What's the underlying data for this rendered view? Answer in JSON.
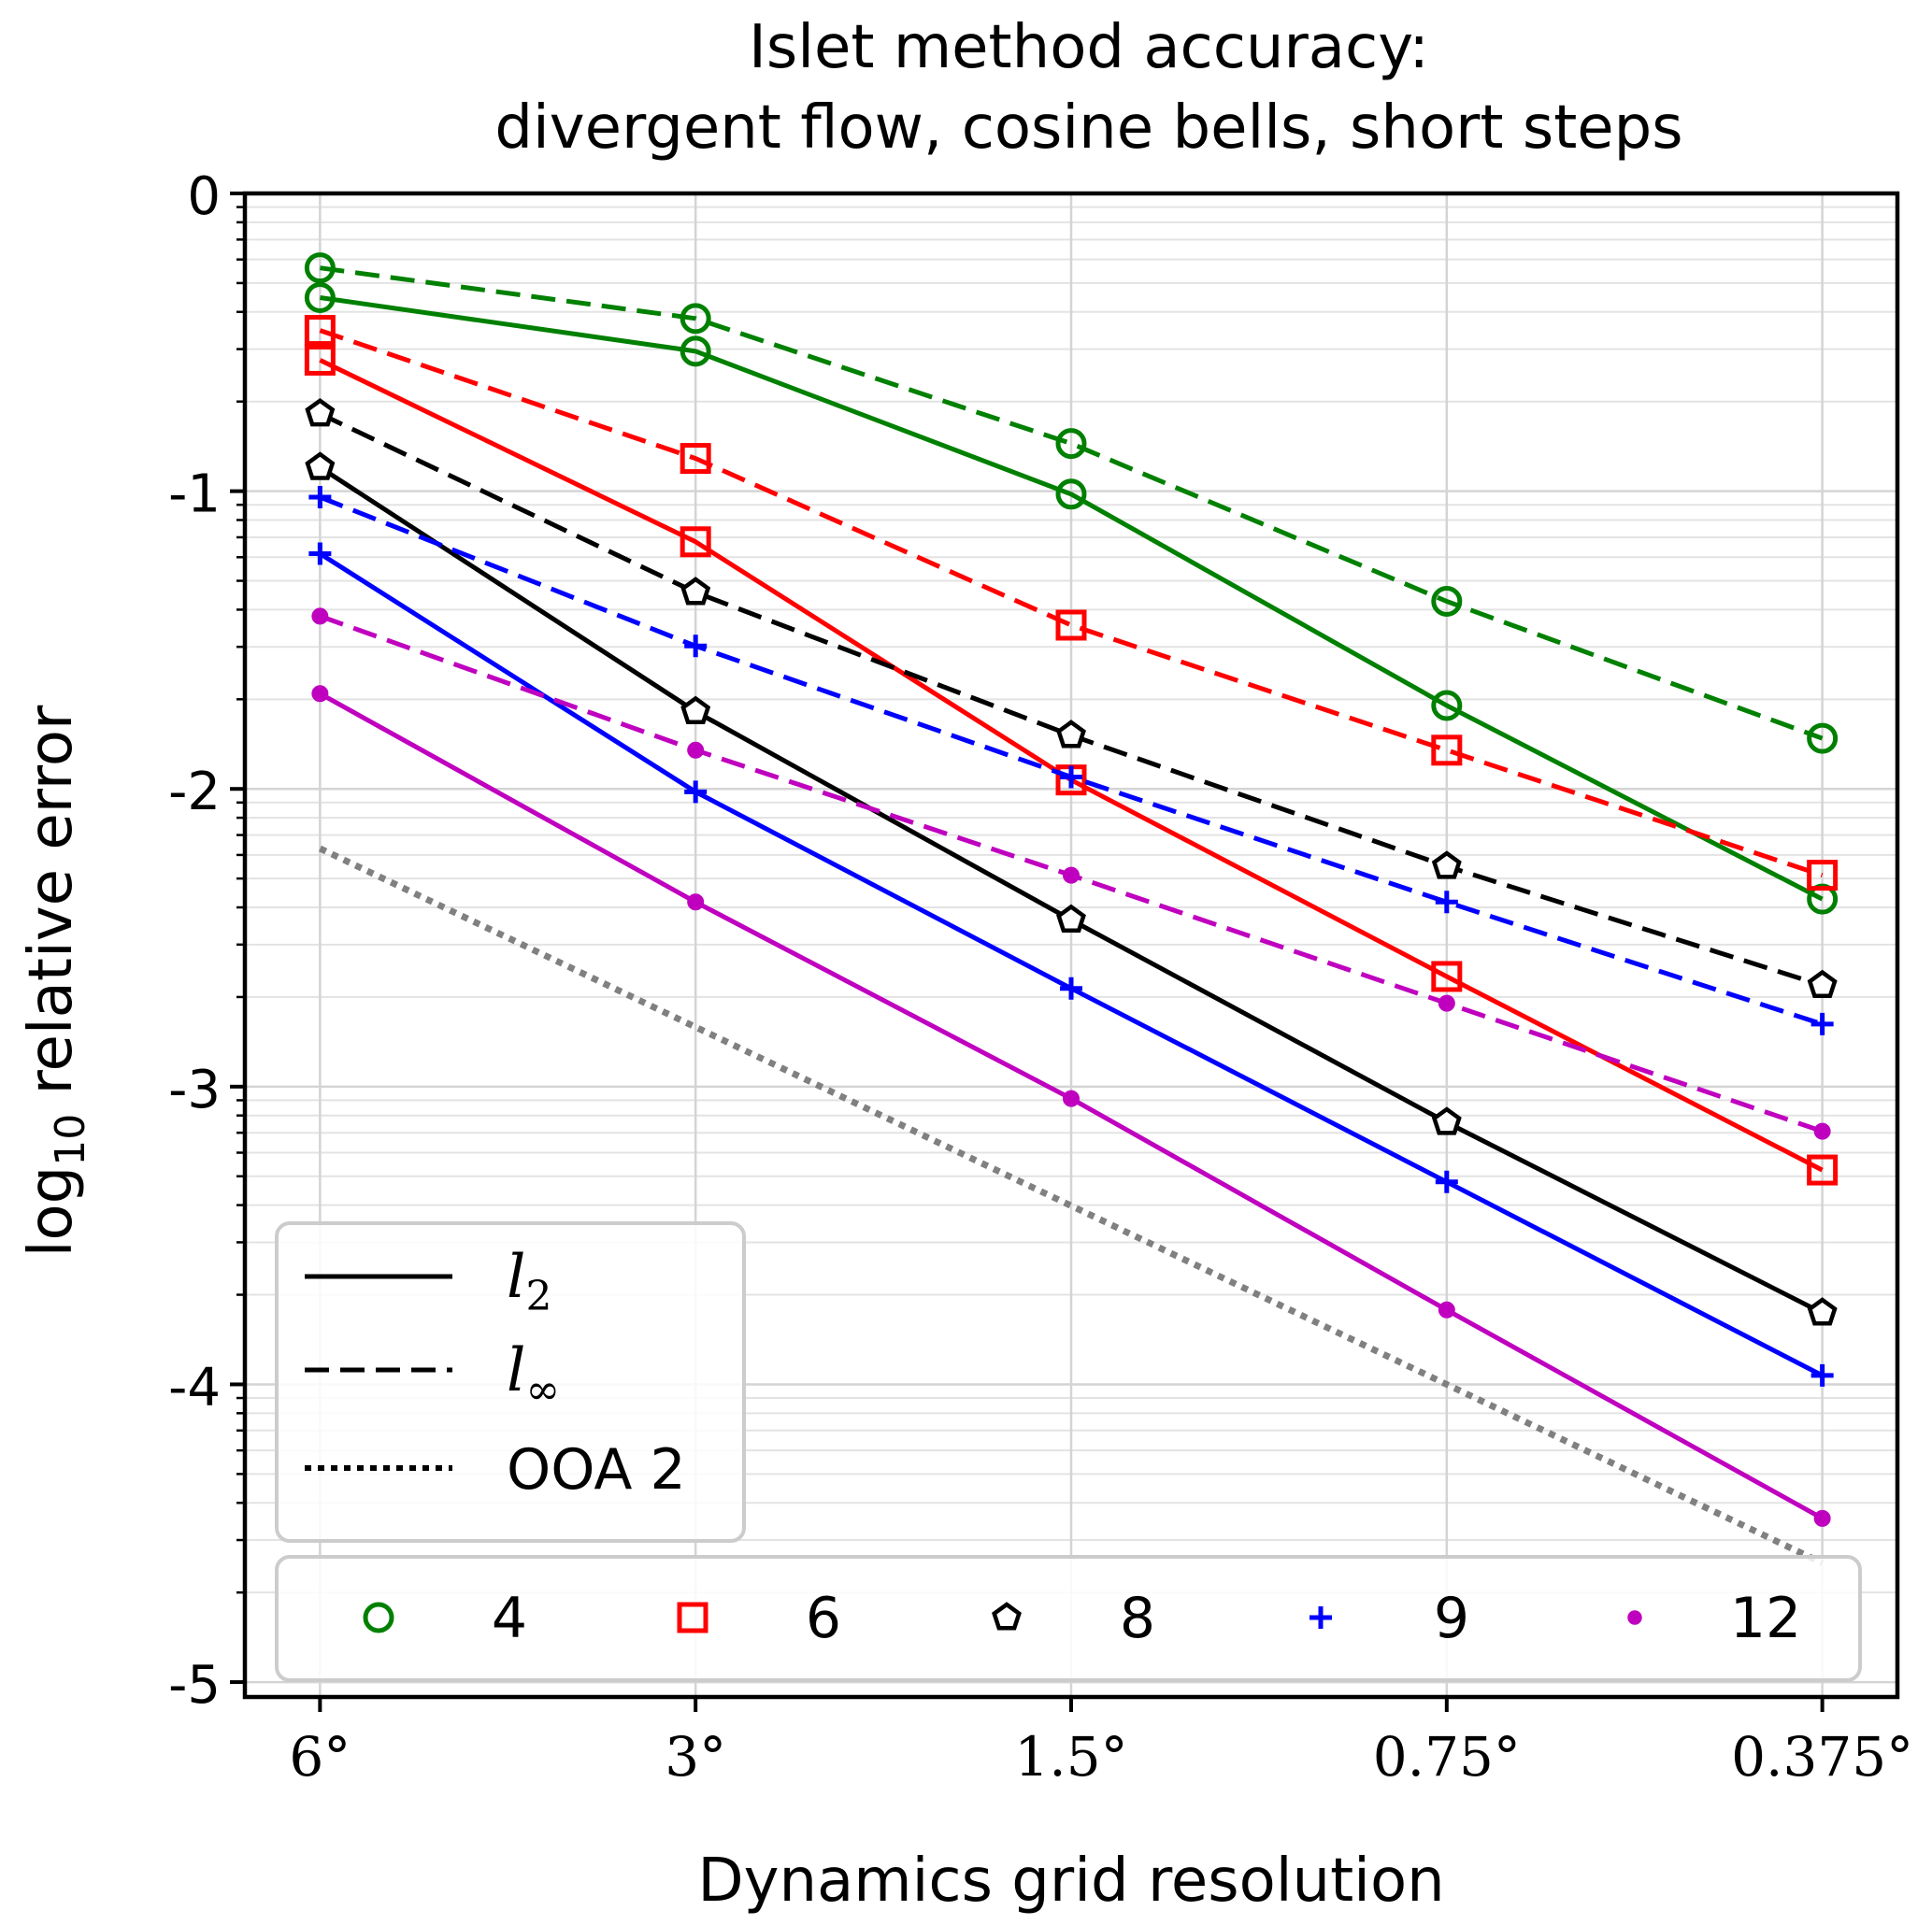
{
  "chart_data": {
    "type": "line",
    "title_lines": [
      "Islet method accuracy:",
      "divergent flow, cosine bells, short steps"
    ],
    "xlabel": "Dynamics grid resolution",
    "ylabel_main": "log",
    "ylabel_sub": "10",
    "ylabel_rest": " relative error",
    "x": [
      0,
      1,
      2,
      3,
      4
    ],
    "xtick_labels": [
      "6°",
      "3°",
      "1.5°",
      "0.75°",
      "0.375°"
    ],
    "xlim": [
      -0.2,
      4.2
    ],
    "ylim": [
      -5.05,
      0
    ],
    "yticks": [
      0,
      -1,
      -2,
      -3,
      -4,
      -5
    ],
    "ytick_labels": [
      "0",
      "-1",
      "-2",
      "-3",
      "-4",
      "-5"
    ],
    "grid": true,
    "series": [
      {
        "name": "4",
        "norm": "l2",
        "color": "#008000",
        "marker": "circle",
        "values": [
          -0.35,
          -0.53,
          -1.01,
          -1.72,
          -2.37
        ]
      },
      {
        "name": "4",
        "norm": "linf",
        "color": "#008000",
        "marker": "circle",
        "values": [
          -0.25,
          -0.42,
          -0.84,
          -1.37,
          -1.83
        ]
      },
      {
        "name": "6",
        "norm": "l2",
        "color": "#ff0000",
        "marker": "square",
        "values": [
          -0.56,
          -1.17,
          -1.97,
          -2.63,
          -3.28
        ]
      },
      {
        "name": "6",
        "norm": "linf",
        "color": "#ff0000",
        "marker": "square",
        "values": [
          -0.46,
          -0.89,
          -1.45,
          -1.87,
          -2.29
        ]
      },
      {
        "name": "8",
        "norm": "l2",
        "color": "#000000",
        "marker": "pentagon",
        "values": [
          -0.92,
          -1.74,
          -2.44,
          -3.12,
          -3.76
        ]
      },
      {
        "name": "8",
        "norm": "linf",
        "color": "#000000",
        "marker": "pentagon",
        "values": [
          -0.74,
          -1.34,
          -1.82,
          -2.26,
          -2.66
        ]
      },
      {
        "name": "9",
        "norm": "l2",
        "color": "#0000ff",
        "marker": "plus",
        "values": [
          -1.21,
          -2.01,
          -2.67,
          -3.32,
          -3.97
        ]
      },
      {
        "name": "9",
        "norm": "linf",
        "color": "#0000ff",
        "marker": "plus",
        "values": [
          -1.02,
          -1.52,
          -1.96,
          -2.38,
          -2.79
        ]
      },
      {
        "name": "12",
        "norm": "l2",
        "color": "#bf00bf",
        "marker": "dot",
        "values": [
          -1.68,
          -2.38,
          -3.04,
          -3.75,
          -4.45
        ]
      },
      {
        "name": "12",
        "norm": "linf",
        "color": "#bf00bf",
        "marker": "dot",
        "values": [
          -1.42,
          -1.87,
          -2.29,
          -2.72,
          -3.15
        ]
      }
    ],
    "reference": {
      "name": "OOA 2",
      "color": "#808080",
      "values": [
        -2.2,
        -2.8,
        -3.4,
        -4.0,
        -4.6
      ]
    },
    "legend_styles": {
      "location": "lower-left",
      "entries": [
        {
          "label_main": "l",
          "label_sub": "2",
          "style": "solid"
        },
        {
          "label_main": "l",
          "label_sub": "∞",
          "style": "dashed"
        },
        {
          "label_main": "OOA 2",
          "label_sub": "",
          "style": "dotted"
        }
      ]
    },
    "legend_colors": {
      "location": "bottom",
      "entries": [
        {
          "label": "4",
          "color": "#008000",
          "marker": "circle"
        },
        {
          "label": "6",
          "color": "#ff0000",
          "marker": "square"
        },
        {
          "label": "8",
          "color": "#000000",
          "marker": "pentagon"
        },
        {
          "label": "9",
          "color": "#0000ff",
          "marker": "plus"
        },
        {
          "label": "12",
          "color": "#bf00bf",
          "marker": "dot"
        }
      ]
    }
  }
}
